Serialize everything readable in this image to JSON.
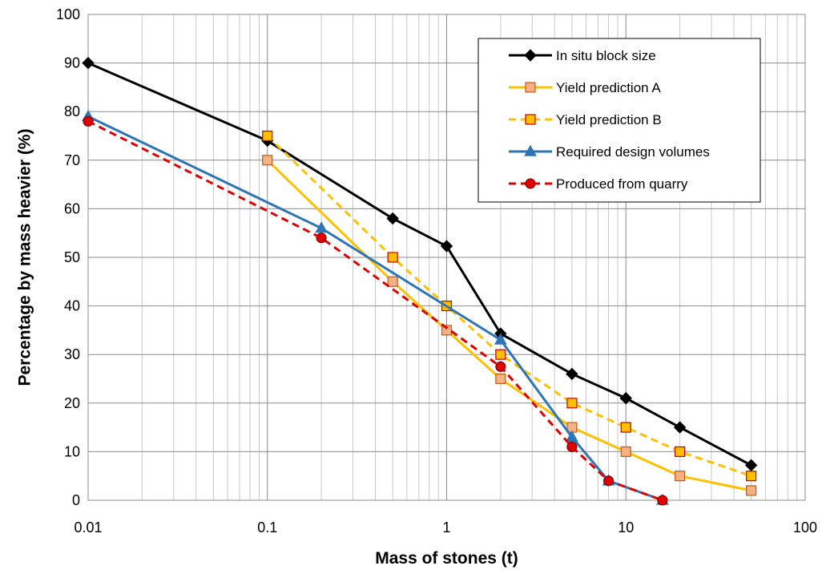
{
  "chart_data": {
    "type": "line",
    "title": "",
    "xlabel": "Mass of stones (t)",
    "ylabel": "Percentage by mass heavier (%)",
    "x_scale": "log",
    "xlim": [
      0.01,
      100
    ],
    "ylim": [
      0,
      100
    ],
    "x_ticks": [
      "0.01",
      "0.1",
      "1",
      "10",
      "100"
    ],
    "y_ticks": [
      "0",
      "10",
      "20",
      "30",
      "40",
      "50",
      "60",
      "70",
      "80",
      "90",
      "100"
    ],
    "grid": true,
    "legend_position": "top-right",
    "series": [
      {
        "name": "In situ block size",
        "color": "#000000",
        "line_style": "solid",
        "marker": "diamond",
        "x": [
          0.01,
          0.1,
          0.5,
          1,
          2,
          5,
          10,
          20,
          50
        ],
        "y": [
          90,
          74,
          58,
          52.3,
          34.3,
          26,
          21,
          15,
          7.2
        ]
      },
      {
        "name": "Yield prediction A",
        "color": "#FFC000",
        "marker_fill": "#F4B183",
        "marker_stroke": "#C55A11",
        "line_style": "solid",
        "marker": "square",
        "x": [
          0.1,
          0.5,
          1,
          2,
          5,
          10,
          20,
          50
        ],
        "y": [
          70,
          45,
          35,
          25,
          15,
          10,
          5,
          2
        ]
      },
      {
        "name": "Yield prediction B",
        "color": "#FFC000",
        "marker_fill": "#FFC000",
        "marker_stroke": "#C00000",
        "line_style": "dashed",
        "marker": "square",
        "x": [
          0.1,
          0.5,
          1,
          2,
          5,
          10,
          20,
          50
        ],
        "y": [
          75,
          50,
          40,
          30,
          20,
          15,
          10,
          5
        ]
      },
      {
        "name": "Required design volumes",
        "color": "#2E75B6",
        "line_style": "solid",
        "marker": "triangle",
        "x": [
          0.01,
          0.2,
          2,
          5,
          8,
          16
        ],
        "y": [
          79,
          56,
          33,
          13,
          4,
          0
        ]
      },
      {
        "name": "Produced from quarry",
        "color": "#E00000",
        "marker_fill": "#E00000",
        "marker_stroke": "#7F0000",
        "line_style": "dashed",
        "marker": "circle",
        "x": [
          0.01,
          0.2,
          2,
          5,
          8,
          16
        ],
        "y": [
          78,
          54,
          27.5,
          11,
          4,
          0
        ]
      }
    ]
  }
}
